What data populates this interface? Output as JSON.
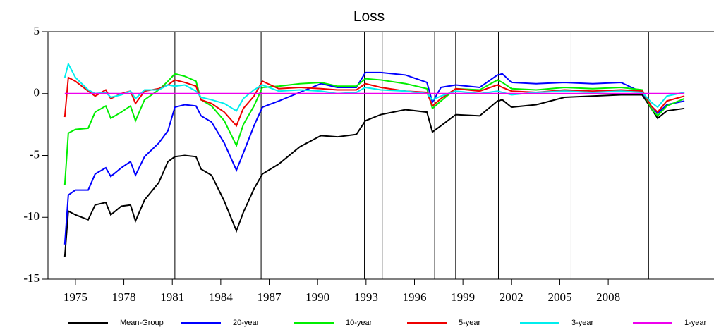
{
  "chart_data": {
    "type": "line",
    "title": "Loss",
    "x": [
      1974.34,
      1974.56,
      1975.0,
      1975.79,
      1976.22,
      1976.88,
      1977.19,
      1977.84,
      1978.41,
      1978.72,
      1979.28,
      1980.16,
      1980.73,
      1981.16,
      1981.77,
      1982.47,
      1982.78,
      1983.43,
      1984.22,
      1984.97,
      1985.4,
      1986.06,
      1986.58,
      1987.59,
      1988.9,
      1990.21,
      1991.22,
      1992.4,
      1992.96,
      1993.92,
      1995.45,
      1996.77,
      1997.11,
      1997.64,
      1998.56,
      2000.04,
      2001.14,
      2001.44,
      2002.01,
      2003.54,
      2005.29,
      2007.04,
      2008.79,
      2010.1,
      2010.66,
      2011.06,
      2011.63,
      2012.72
    ],
    "series": [
      {
        "name": "Mean-Group",
        "color": "#000000",
        "values": [
          -13.2,
          -9.5,
          -9.8,
          -10.2,
          -9.0,
          -8.8,
          -9.8,
          -9.1,
          -9.0,
          -10.3,
          -8.6,
          -7.2,
          -5.5,
          -5.1,
          -5.0,
          -5.1,
          -6.1,
          -6.6,
          -8.7,
          -11.1,
          -9.6,
          -7.7,
          -6.5,
          -5.7,
          -4.3,
          -3.4,
          -3.5,
          -3.3,
          -2.2,
          -1.7,
          -1.3,
          -1.5,
          -3.1,
          -2.6,
          -1.7,
          -1.8,
          -0.6,
          -0.5,
          -1.1,
          -0.9,
          -0.3,
          -0.2,
          -0.1,
          -0.1,
          -1.2,
          -2.0,
          -1.4,
          -1.2
        ]
      },
      {
        "name": "20-year",
        "color": "#0000ff",
        "values": [
          -12.2,
          -8.2,
          -7.8,
          -7.8,
          -6.5,
          -6.0,
          -6.7,
          -6.0,
          -5.5,
          -6.6,
          -5.1,
          -4.0,
          -3.0,
          -1.1,
          -0.9,
          -1.0,
          -1.8,
          -2.3,
          -4.0,
          -6.2,
          -4.8,
          -2.6,
          -1.1,
          -0.6,
          0.1,
          0.8,
          0.5,
          0.5,
          1.7,
          1.7,
          1.5,
          0.9,
          -0.7,
          0.5,
          0.7,
          0.5,
          1.5,
          1.6,
          0.9,
          0.8,
          0.9,
          0.8,
          0.9,
          0.1,
          -1.0,
          -1.6,
          -0.9,
          -0.6
        ]
      },
      {
        "name": "10-year",
        "color": "#00ee00",
        "values": [
          -7.4,
          -3.2,
          -2.9,
          -2.8,
          -1.5,
          -1.0,
          -2.0,
          -1.5,
          -1.0,
          -2.2,
          -0.5,
          0.3,
          1.0,
          1.6,
          1.4,
          1.0,
          -0.5,
          -1.0,
          -2.2,
          -4.2,
          -2.5,
          -1.0,
          0.5,
          0.6,
          0.8,
          0.9,
          0.6,
          0.6,
          1.2,
          1.1,
          0.8,
          0.4,
          -1.2,
          -0.6,
          0.4,
          0.3,
          1.1,
          0.9,
          0.4,
          0.3,
          0.5,
          0.4,
          0.5,
          0.3,
          -1.2,
          -1.8,
          -1.0,
          -0.4
        ]
      },
      {
        "name": "5-year",
        "color": "#ee0000",
        "values": [
          -1.9,
          1.3,
          1.0,
          0.2,
          -0.2,
          0.3,
          -0.4,
          0.0,
          0.2,
          -0.8,
          0.2,
          0.4,
          0.7,
          1.1,
          0.9,
          0.6,
          -0.5,
          -0.8,
          -1.5,
          -2.6,
          -1.2,
          -0.2,
          1.0,
          0.4,
          0.5,
          0.4,
          0.3,
          0.3,
          0.8,
          0.5,
          0.2,
          0.1,
          -1.0,
          -0.4,
          0.4,
          0.2,
          0.7,
          0.5,
          0.2,
          0.1,
          0.3,
          0.2,
          0.3,
          0.2,
          -1.0,
          -1.5,
          -0.6,
          -0.2
        ]
      },
      {
        "name": "3-year",
        "color": "#00eeee",
        "values": [
          1.3,
          2.4,
          1.3,
          0.3,
          0.0,
          0.1,
          -0.3,
          -0.1,
          0.2,
          -0.4,
          0.3,
          0.3,
          0.7,
          0.6,
          0.7,
          0.2,
          -0.3,
          -0.5,
          -0.8,
          -1.4,
          -0.4,
          0.3,
          0.7,
          0.2,
          0.3,
          0.2,
          0.0,
          0.1,
          0.5,
          0.3,
          0.2,
          0.0,
          -0.5,
          -0.2,
          0.2,
          0.0,
          0.2,
          0.1,
          -0.1,
          0.1,
          0.2,
          0.1,
          0.2,
          0.1,
          -0.7,
          -1.1,
          -0.2,
          0.1
        ]
      },
      {
        "name": "1-year",
        "color": "#ee00ee",
        "values": [
          0,
          0,
          0,
          0,
          0,
          0,
          0,
          0,
          0,
          0,
          0,
          0,
          0,
          0,
          0,
          0,
          0,
          0,
          0,
          0,
          0,
          0,
          0,
          0,
          0,
          0,
          0,
          0,
          0,
          0,
          0,
          0,
          0,
          0,
          0,
          0,
          0,
          0,
          0,
          0,
          0,
          0,
          0,
          0,
          0,
          0,
          0,
          0
        ]
      }
    ],
    "vlines": [
      1981.16,
      1986.5,
      1992.9,
      1994.0,
      1997.25,
      1998.55,
      2001.2,
      2005.7,
      2010.5
    ],
    "xlim": [
      1973.3,
      2014.55
    ],
    "xticks": [
      1975,
      1978,
      1981,
      1984,
      1987,
      1990,
      1993,
      1996,
      1999,
      2002,
      2005,
      2008
    ],
    "ylim": [
      -15,
      5
    ],
    "yticks": [
      -15,
      -10,
      -5,
      0,
      5
    ],
    "legend": "bottom"
  }
}
